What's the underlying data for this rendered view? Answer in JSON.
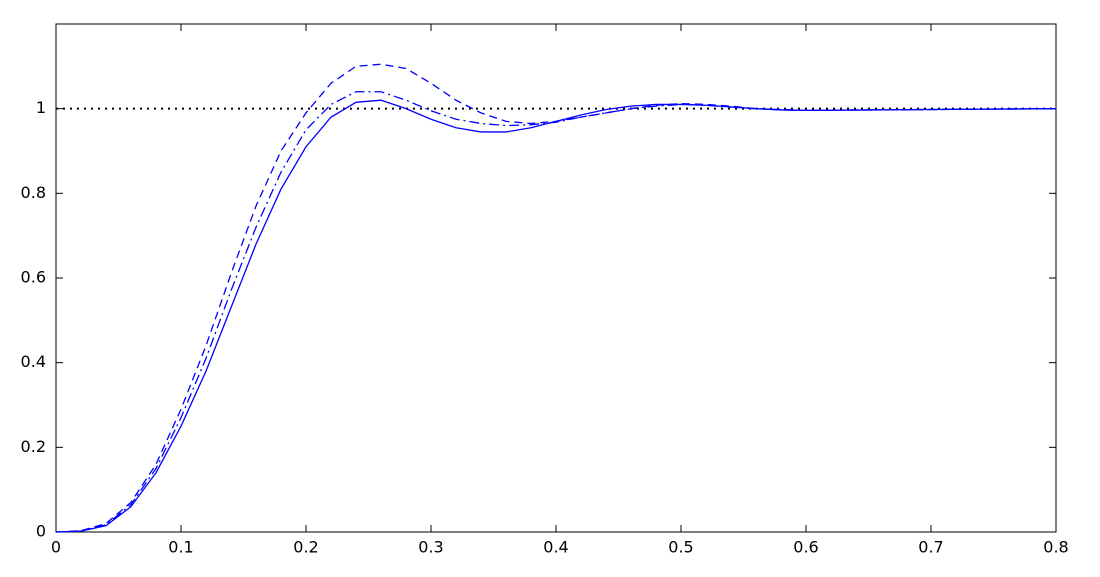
{
  "chart_data": {
    "type": "line",
    "x": [
      0,
      0.02,
      0.04,
      0.06,
      0.08,
      0.1,
      0.12,
      0.14,
      0.16,
      0.18,
      0.2,
      0.22,
      0.24,
      0.26,
      0.28,
      0.3,
      0.32,
      0.34,
      0.36,
      0.38,
      0.4,
      0.42,
      0.44,
      0.46,
      0.48,
      0.5,
      0.52,
      0.54,
      0.56,
      0.58,
      0.6,
      0.7,
      0.8
    ],
    "series": [
      {
        "color": "#0000ff",
        "style": "solid",
        "values": [
          0,
          0.002,
          0.015,
          0.06,
          0.14,
          0.25,
          0.38,
          0.53,
          0.68,
          0.81,
          0.91,
          0.98,
          1.015,
          1.02,
          1.0,
          0.975,
          0.955,
          0.945,
          0.945,
          0.955,
          0.97,
          0.985,
          0.998,
          1.006,
          1.01,
          1.01,
          1.008,
          1.004,
          1.0,
          0.997,
          0.996,
          0.998,
          1.0
        ]
      },
      {
        "color": "#0000ff",
        "style": "dashed",
        "values": [
          0,
          0.003,
          0.02,
          0.07,
          0.16,
          0.29,
          0.44,
          0.61,
          0.77,
          0.9,
          0.99,
          1.06,
          1.1,
          1.105,
          1.095,
          1.06,
          1.02,
          0.99,
          0.97,
          0.965,
          0.97,
          0.98,
          0.99,
          1.0,
          1.008,
          1.012,
          1.01,
          1.006,
          1.0,
          0.998,
          0.996,
          0.998,
          1.0
        ]
      },
      {
        "color": "#0000ff",
        "style": "dashdot",
        "values": [
          0,
          0.002,
          0.017,
          0.065,
          0.15,
          0.27,
          0.41,
          0.57,
          0.72,
          0.85,
          0.95,
          1.01,
          1.04,
          1.04,
          1.02,
          0.995,
          0.975,
          0.965,
          0.96,
          0.962,
          0.968,
          0.98,
          0.99,
          1.0,
          1.006,
          1.01,
          1.008,
          1.004,
          1.0,
          0.997,
          0.996,
          0.998,
          1.0
        ]
      }
    ],
    "reference_lines": [
      {
        "y": 1,
        "color": "#000000",
        "style": "dotted"
      }
    ],
    "xlim": [
      0,
      0.8
    ],
    "xticks": [
      0,
      0.1,
      0.2,
      0.3,
      0.4,
      0.5,
      0.6,
      0.7,
      0.8
    ],
    "ylim": [
      0,
      1.2
    ],
    "yticks": [
      0,
      0.2,
      0.4,
      0.6,
      0.8,
      1
    ],
    "grid": false,
    "box": true
  }
}
